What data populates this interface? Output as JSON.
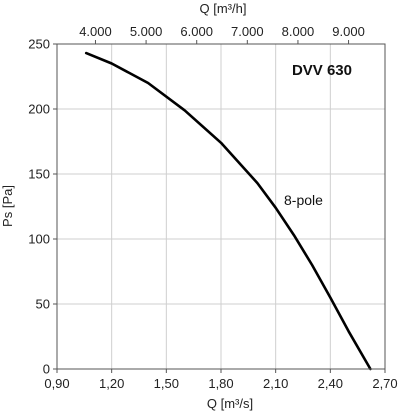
{
  "chart_data": {
    "type": "line",
    "title": "DVV 630",
    "xlabel": "Q [m³/s]",
    "x2label": "Q [m³/h]",
    "ylabel": "Ps [Pa]",
    "xlim": [
      0.9,
      2.7
    ],
    "ylim": [
      0,
      250
    ],
    "xticks": [
      0.9,
      1.2,
      1.5,
      1.8,
      2.1,
      2.4,
      2.7
    ],
    "xtick_labels": [
      "0,90",
      "1,20",
      "1,50",
      "1,80",
      "2,10",
      "2,40",
      "2,70"
    ],
    "x2ticks": [
      4000,
      5000,
      6000,
      7000,
      8000,
      9000
    ],
    "x2tick_labels": [
      "4.000",
      "5.000",
      "6.000",
      "7.000",
      "8.000",
      "9.000"
    ],
    "yticks": [
      0,
      50,
      100,
      150,
      200,
      250
    ],
    "ytick_labels": [
      "0",
      "50",
      "100",
      "150",
      "200",
      "250"
    ],
    "grid": true,
    "series": [
      {
        "name": "8-pole",
        "x": [
          1.06,
          1.2,
          1.4,
          1.6,
          1.8,
          2.0,
          2.1,
          2.2,
          2.3,
          2.4,
          2.5,
          2.62
        ],
        "y": [
          243,
          235,
          220,
          199,
          174,
          143,
          124,
          103,
          80,
          55,
          29,
          0
        ]
      }
    ]
  }
}
